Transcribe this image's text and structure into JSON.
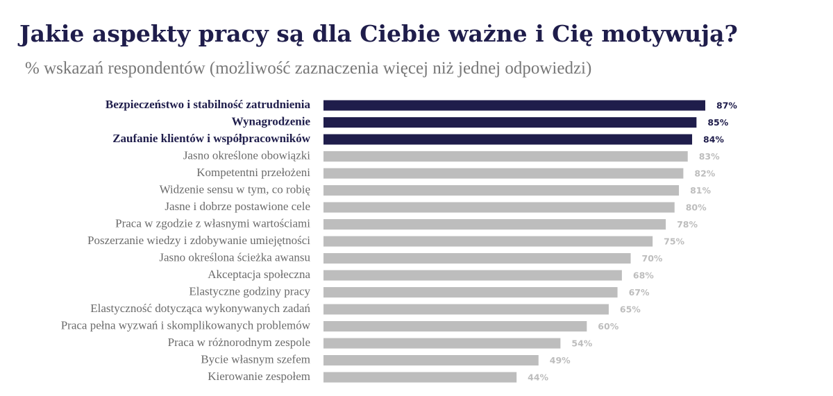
{
  "chart_data": {
    "type": "hbar",
    "title": "Jakie aspekty pracy są dla Ciebie ważne i Cię motywują?",
    "subtitle": "% wskazań respondentów (możliwość zaznaczenia więcej niż jednej odpowiedzi)",
    "categories": [
      "Bezpieczeństwo i stabilność zatrudnienia",
      "Wynagrodzenie",
      "Zaufanie klientów i współpracowników",
      "Jasno określone obowiązki",
      "Kompetentni przełożeni",
      "Widzenie sensu w tym, co robię",
      "Jasne i dobrze postawione cele",
      "Praca w zgodzie z własnymi wartościami",
      "Poszerzanie wiedzy i zdobywanie umiejętności",
      "Jasno określona ścieżka awansu",
      "Akceptacja społeczna",
      "Elastyczne godziny pracy",
      "Elastyczność dotycząca wykonywanych zadań",
      "Praca pełna wyzwań i skomplikowanych problemów",
      "Praca w różnorodnym zespole",
      "Bycie własnym szefem",
      "Kierowanie zespołem"
    ],
    "values": [
      87,
      85,
      84,
      83,
      82,
      81,
      80,
      78,
      75,
      70,
      68,
      67,
      65,
      60,
      54,
      49,
      44
    ],
    "value_labels": [
      "87%",
      "85%",
      "84%",
      "83%",
      "82%",
      "81%",
      "80%",
      "78%",
      "75%",
      "70%",
      "68%",
      "67%",
      "65%",
      "60%",
      "54%",
      "49%",
      "44%"
    ],
    "color": "#bdbdbd",
    "highlight_color": "#1f1d4b",
    "highlighted": [
      true,
      true,
      true,
      false,
      false,
      false,
      false,
      false,
      false,
      false,
      false,
      false,
      false,
      false,
      false,
      false,
      false
    ]
  }
}
